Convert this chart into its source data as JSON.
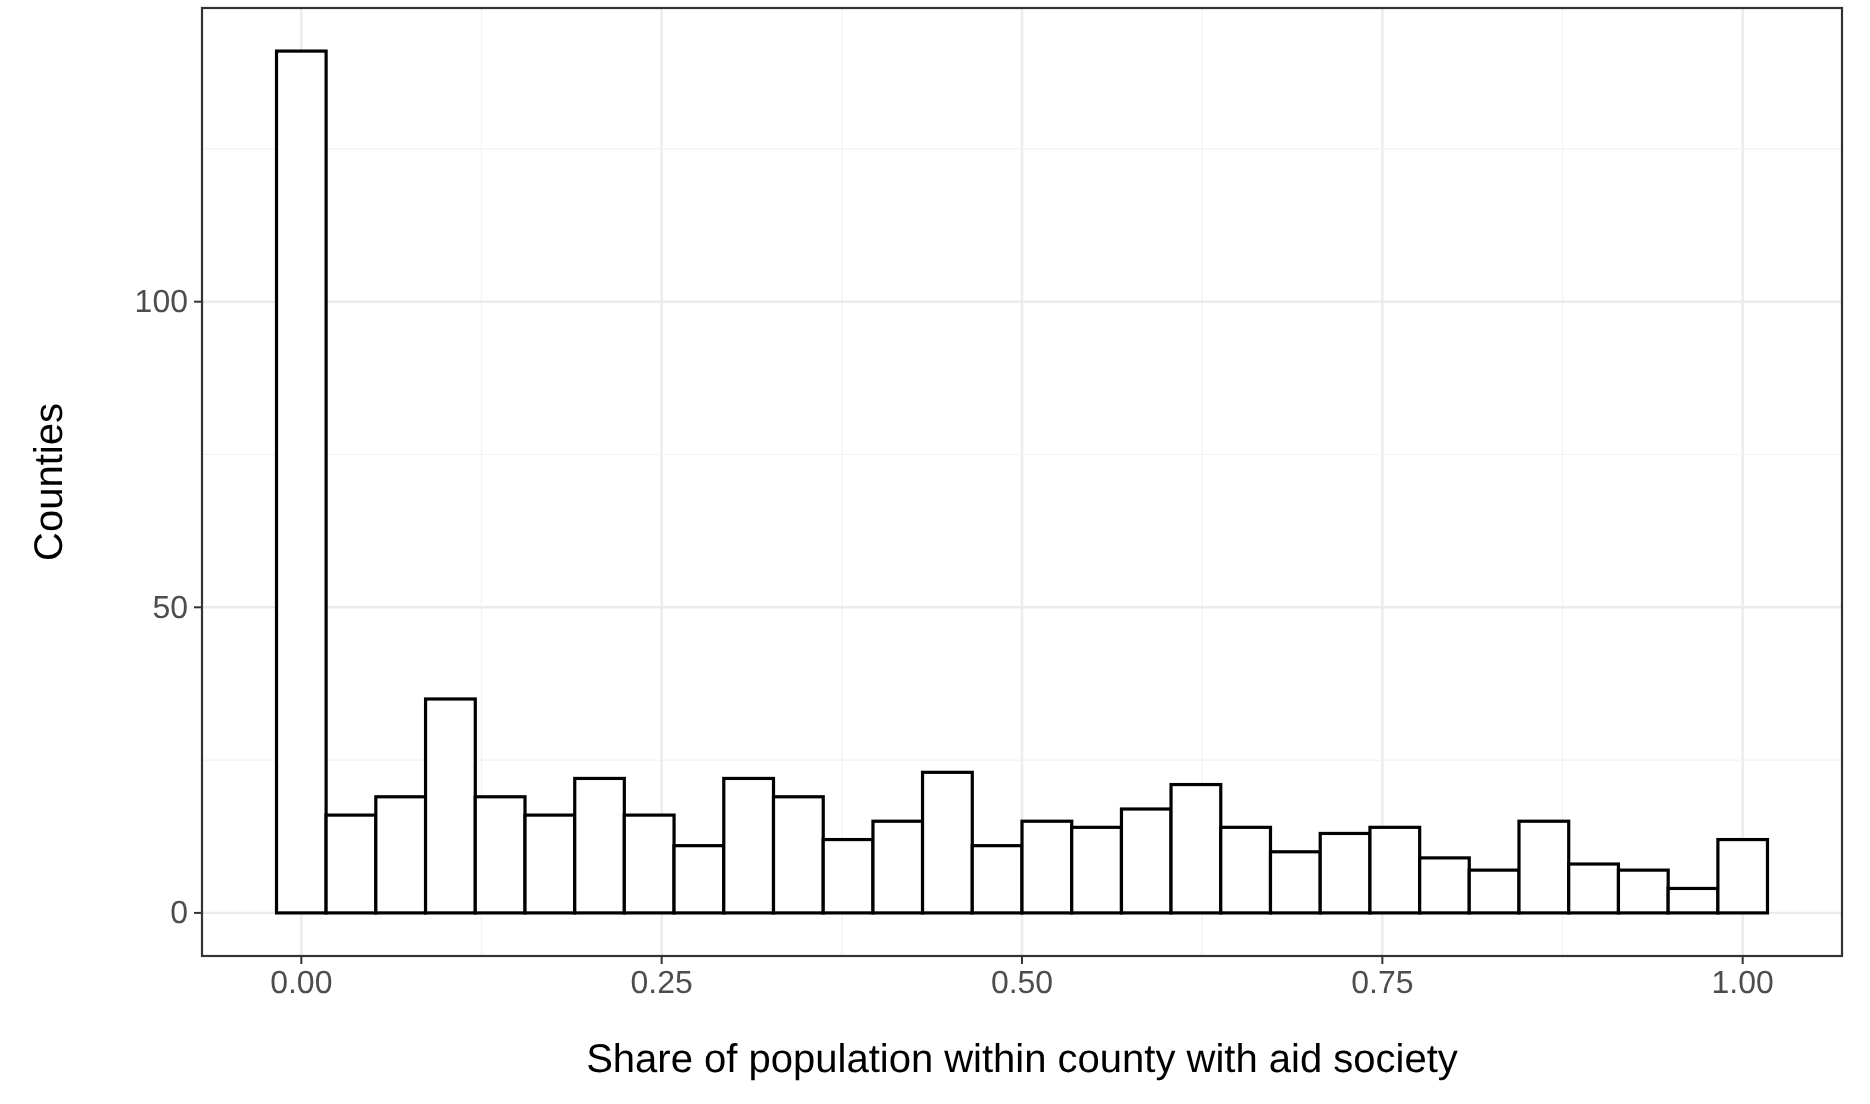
{
  "chart_data": {
    "type": "histogram",
    "xlabel": "Share of population within county with aid society",
    "ylabel": "Counties",
    "bins": [
      -0.0172,
      0.0172,
      0.0517,
      0.0862,
      0.1207,
      0.1552,
      0.1897,
      0.2241,
      0.2586,
      0.2931,
      0.3276,
      0.3621,
      0.3966,
      0.431,
      0.4655,
      0.5,
      0.5345,
      0.569,
      0.6034,
      0.6379,
      0.6724,
      0.7069,
      0.7414,
      0.7759,
      0.8103,
      0.8448,
      0.8793,
      0.9138,
      0.9483,
      0.9828,
      1.0172
    ],
    "values": [
      141,
      16,
      19,
      35,
      19,
      16,
      22,
      16,
      11,
      22,
      19,
      12,
      15,
      23,
      11,
      15,
      14,
      17,
      21,
      14,
      10,
      13,
      14,
      9,
      7,
      15,
      8,
      7,
      4,
      12
    ],
    "color": "#ffffff",
    "xlim": [
      -0.0689,
      1.0689
    ],
    "ylim": [
      -7.05,
      148.05
    ],
    "xticks": [
      {
        "value": 0,
        "label": "0.00"
      },
      {
        "value": 0.25,
        "label": "0.25"
      },
      {
        "value": 0.5,
        "label": "0.50"
      },
      {
        "value": 0.75,
        "label": "0.75"
      },
      {
        "value": 1,
        "label": "1.00"
      }
    ],
    "yticks": [
      0,
      50,
      100
    ],
    "grid": true
  }
}
